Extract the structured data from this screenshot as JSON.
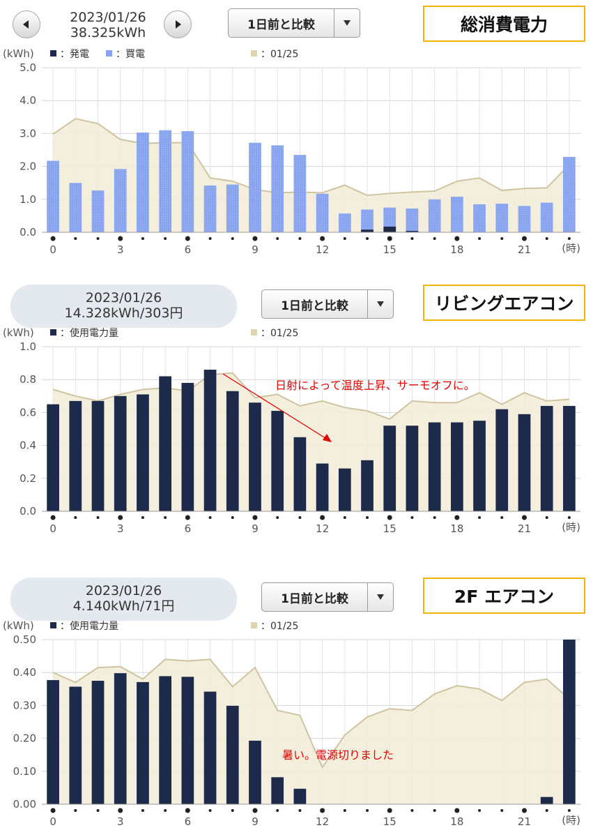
{
  "colors": {
    "dark_bar": "#1e2a4a",
    "light_bar": "#88a4ee",
    "area_fill": "#f2ecd6",
    "area_stroke": "#cfc3a0",
    "grid": "#cfcfcf",
    "title_border": "#f0b400",
    "note": "#e00000"
  },
  "icons": {
    "prev": "left-triangle-icon",
    "next": "right-triangle-icon",
    "dropdown": "down-triangle-icon"
  },
  "panels": [
    {
      "date": "2023/01/26",
      "total": "38.325kWh",
      "has_nav": true,
      "compare_label": "1日前と比較",
      "title": "総消費電力",
      "unit": "(kWh)",
      "hour_unit": "(時)",
      "legend": [
        {
          "marker": "■",
          "label": "：発電"
        },
        {
          "marker": "■",
          "label": "：買電"
        },
        {
          "marker": "■",
          "label": "：01/25"
        }
      ],
      "note": "",
      "chart_data": {
        "type": "bar",
        "x": [
          0,
          1,
          2,
          3,
          4,
          5,
          6,
          7,
          8,
          9,
          10,
          11,
          12,
          13,
          14,
          15,
          16,
          17,
          18,
          19,
          20,
          21,
          22,
          23
        ],
        "ylim": [
          0,
          5.0
        ],
        "yticks": [
          "0.0",
          "1.0",
          "2.0",
          "3.0",
          "4.0",
          "5.0"
        ],
        "xticks": [
          "0",
          "3",
          "6",
          "9",
          "12",
          "15",
          "18",
          "21"
        ],
        "series": [
          {
            "name": "発電",
            "values": [
              0,
              0,
              0,
              0,
              0,
              0,
              0,
              0,
              0,
              0,
              0,
              0,
              0,
              0,
              0.08,
              0.17,
              0.04,
              0,
              0,
              0,
              0,
              0,
              0,
              0
            ]
          },
          {
            "name": "買電",
            "values": [
              2.17,
              1.5,
              1.27,
              1.92,
              3.03,
              3.1,
              3.07,
              1.42,
              1.45,
              2.72,
              2.64,
              2.35,
              1.17,
              0.57,
              0.69,
              0.75,
              0.72,
              1.0,
              1.08,
              0.85,
              0.87,
              0.8,
              0.9,
              2.29
            ]
          },
          {
            "name": "01/25",
            "values": [
              2.98,
              3.45,
              3.3,
              2.82,
              2.7,
              2.72,
              2.72,
              1.65,
              1.55,
              1.3,
              1.2,
              1.22,
              1.2,
              1.43,
              1.12,
              1.18,
              1.22,
              1.25,
              1.55,
              1.65,
              1.27,
              1.33,
              1.35,
              2.05
            ]
          }
        ]
      }
    },
    {
      "date": "2023/01/26",
      "total": "14.328kWh/303円",
      "has_nav": false,
      "compare_label": "1日前と比較",
      "title": "リビングエアコン",
      "unit": "(kWh)",
      "hour_unit": "(時)",
      "legend": [
        {
          "marker": "■",
          "label": "：使用電力量"
        },
        {
          "marker": "■",
          "label": "：01/25"
        }
      ],
      "note": "日射によって温度上昇、サーモオフに。",
      "chart_data": {
        "type": "bar",
        "x": [
          0,
          1,
          2,
          3,
          4,
          5,
          6,
          7,
          8,
          9,
          10,
          11,
          12,
          13,
          14,
          15,
          16,
          17,
          18,
          19,
          20,
          21,
          22,
          23
        ],
        "ylim": [
          0,
          1.0
        ],
        "yticks": [
          "0.0",
          "0.2",
          "0.4",
          "0.6",
          "0.8",
          "1.0"
        ],
        "xticks": [
          "0",
          "3",
          "6",
          "9",
          "12",
          "15",
          "18",
          "21"
        ],
        "series": [
          {
            "name": "使用電力量",
            "values": [
              0.65,
              0.67,
              0.67,
              0.7,
              0.71,
              0.82,
              0.78,
              0.86,
              0.73,
              0.66,
              0.61,
              0.45,
              0.29,
              0.26,
              0.31,
              0.52,
              0.52,
              0.54,
              0.54,
              0.55,
              0.62,
              0.59,
              0.64,
              0.64
            ]
          },
          {
            "name": "01/25",
            "values": [
              0.74,
              0.7,
              0.67,
              0.71,
              0.74,
              0.75,
              0.73,
              0.83,
              0.84,
              0.69,
              0.71,
              0.64,
              0.67,
              0.63,
              0.61,
              0.56,
              0.67,
              0.66,
              0.66,
              0.72,
              0.65,
              0.72,
              0.67,
              0.68
            ]
          }
        ]
      }
    },
    {
      "date": "2023/01/26",
      "total": "4.140kWh/71円",
      "has_nav": false,
      "compare_label": "1日前と比較",
      "title": "2F エアコン",
      "unit": "(kWh)",
      "hour_unit": "(時)",
      "legend": [
        {
          "marker": "■",
          "label": "：使用電力量"
        },
        {
          "marker": "■",
          "label": "：01/25"
        }
      ],
      "note": "暑い。電源切りました",
      "chart_data": {
        "type": "bar",
        "x": [
          0,
          1,
          2,
          3,
          4,
          5,
          6,
          7,
          8,
          9,
          10,
          11,
          12,
          13,
          14,
          15,
          16,
          17,
          18,
          19,
          20,
          21,
          22,
          23
        ],
        "ylim": [
          0,
          0.5
        ],
        "yticks": [
          "0.00",
          "0.10",
          "0.20",
          "0.30",
          "0.40",
          "0.50"
        ],
        "xticks": [
          "0",
          "3",
          "6",
          "9",
          "12",
          "15",
          "18",
          "21"
        ],
        "series": [
          {
            "name": "使用電力量",
            "values": [
              0.377,
              0.357,
              0.375,
              0.398,
              0.371,
              0.389,
              0.387,
              0.342,
              0.299,
              0.193,
              0.082,
              0.047,
              0,
              0,
              0,
              0,
              0,
              0,
              0,
              0,
              0,
              0,
              0.022,
              0.5
            ]
          },
          {
            "name": "01/25",
            "values": [
              0.4,
              0.37,
              0.415,
              0.418,
              0.38,
              0.44,
              0.435,
              0.44,
              0.357,
              0.415,
              0.285,
              0.27,
              0.112,
              0.21,
              0.265,
              0.29,
              0.285,
              0.335,
              0.36,
              0.35,
              0.315,
              0.37,
              0.38,
              0.32
            ]
          }
        ]
      }
    }
  ]
}
